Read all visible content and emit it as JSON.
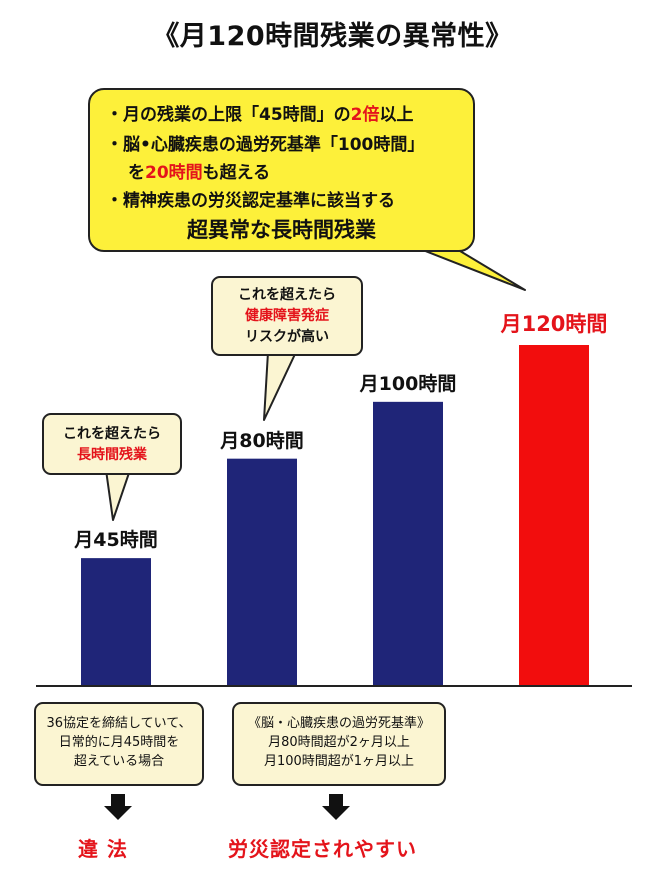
{
  "title": "《月120時間残業の異常性》",
  "callout": {
    "line1_pre": "・月の残業の上限「45時間」の",
    "line1_red": "2倍",
    "line1_post": "以上",
    "line2": "・脳•心臓疾患の過労死基準「100時間」",
    "line3_pre": "を",
    "line3_red": "20時間",
    "line3_post": "も超える",
    "line4": "・精神疾患の労災認定基準に該当する",
    "line5": "超異常な長時間残業"
  },
  "bubbles": {
    "b1_line1": "これを超えたら",
    "b1_line2": "長時間残業",
    "b2_line1": "これを超えたら",
    "b2_line2": "健康障害発症",
    "b2_line3": "リスクが高い"
  },
  "notes": {
    "n1_line1": "36協定を締結していて、",
    "n1_line2": "日常的に月45時間を",
    "n1_line3": "超えている場合",
    "n2_line1": "《脳・心臓疾患の過労死基準》",
    "n2_line2": "月80時間超が2ヶ月以上",
    "n2_line3": "月100時間超が1ヶ月以上"
  },
  "results": {
    "r1": "違 法",
    "r2": "労災認定されやすい"
  },
  "colors": {
    "bar": "#1f2578",
    "highlight_bar": "#f20d0d",
    "red_text": "#e4141b",
    "callout_bg": "#fdf03a",
    "bubble_bg": "#fbf5d2"
  },
  "chart_data": {
    "type": "bar",
    "categories": [
      "月45時間",
      "月80時間",
      "月100時間",
      "月120時間"
    ],
    "values": [
      45,
      80,
      100,
      120
    ],
    "title": "《月120時間残業の異常性》",
    "xlabel": "",
    "ylabel": "",
    "ylim": [
      0,
      120
    ],
    "highlight": "月120時間",
    "grid": false,
    "legend": "none"
  }
}
